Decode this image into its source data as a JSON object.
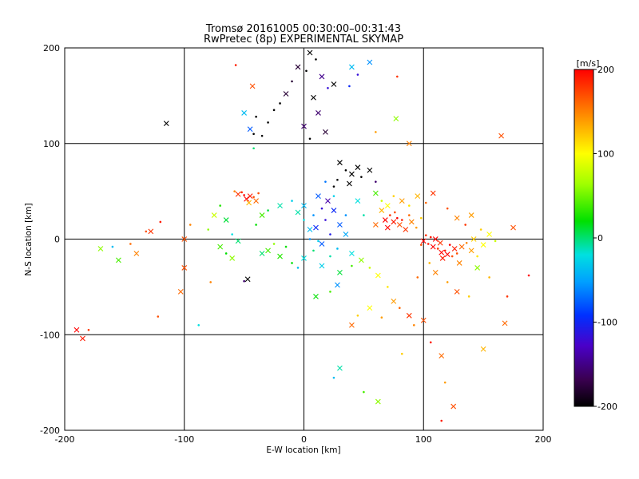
{
  "chart_data": {
    "type": "scatter",
    "title": "Tromsø 20161005 00:30:00–00:31:43",
    "subtitle": "RwPretec (8p) EXPERIMENTAL SKYMAP",
    "xlabel": "E-W location [km]",
    "ylabel": "N-S location [km]",
    "xlim": [
      -200,
      200
    ],
    "ylim": [
      -200,
      200
    ],
    "xticks": [
      "-200",
      "-100",
      "0",
      "100",
      "200"
    ],
    "yticks": [
      "-200",
      "-100",
      "0",
      "100",
      "200"
    ],
    "grid": true,
    "colorbar": {
      "label": "[m/s]",
      "range": [
        -200,
        200
      ],
      "ticks": [
        "200",
        "100",
        "0",
        "-100",
        "-200"
      ]
    },
    "marker_legend": "small dots and × crosses, colour = velocity (m/s)",
    "series": [
      {
        "values": [
          [
            5,
            195,
            -200
          ],
          [
            10,
            188,
            -200
          ],
          [
            -5,
            180,
            -180
          ],
          [
            2,
            176,
            -200
          ],
          [
            15,
            170,
            -150
          ],
          [
            -10,
            165,
            -180
          ],
          [
            25,
            162,
            -200
          ],
          [
            20,
            158,
            -120
          ],
          [
            -15,
            152,
            -180
          ],
          [
            -20,
            142,
            -200
          ],
          [
            8,
            148,
            -200
          ],
          [
            -25,
            135,
            -200
          ],
          [
            12,
            132,
            -160
          ],
          [
            -30,
            122,
            -200
          ],
          [
            0,
            118,
            -160
          ],
          [
            -35,
            108,
            -200
          ],
          [
            18,
            112,
            -180
          ],
          [
            -42,
            110,
            -200
          ],
          [
            -45,
            115,
            -80
          ],
          [
            5,
            105,
            -200
          ],
          [
            40,
            180,
            -40
          ],
          [
            45,
            172,
            -120
          ],
          [
            55,
            185,
            -60
          ],
          [
            38,
            160,
            -100
          ],
          [
            -115,
            121,
            -200
          ],
          [
            -57,
            182,
            190
          ],
          [
            -43,
            160,
            170
          ],
          [
            78,
            170,
            180
          ],
          [
            165,
            108,
            170
          ],
          [
            -40,
            128,
            -200
          ],
          [
            -50,
            132,
            -40
          ],
          [
            -42,
            95,
            0
          ],
          [
            77,
            126,
            60
          ],
          [
            60,
            112,
            140
          ],
          [
            88,
            100,
            150
          ]
        ]
      },
      {
        "values": [
          [
            30,
            80,
            -200
          ],
          [
            35,
            72,
            -200
          ],
          [
            40,
            68,
            -200
          ],
          [
            28,
            62,
            -200
          ],
          [
            45,
            75,
            -200
          ],
          [
            48,
            65,
            -200
          ],
          [
            55,
            72,
            -200
          ],
          [
            25,
            55,
            -200
          ],
          [
            38,
            58,
            -200
          ],
          [
            60,
            60,
            -160
          ],
          [
            20,
            40,
            -140
          ],
          [
            15,
            32,
            -120
          ],
          [
            25,
            30,
            -100
          ],
          [
            18,
            20,
            -120
          ],
          [
            10,
            12,
            -100
          ],
          [
            22,
            5,
            -110
          ],
          [
            30,
            15,
            -80
          ],
          [
            35,
            25,
            -60
          ],
          [
            12,
            45,
            -80
          ],
          [
            8,
            25,
            -60
          ],
          [
            15,
            -5,
            -80
          ],
          [
            28,
            -10,
            -40
          ],
          [
            40,
            -15,
            -20
          ],
          [
            5,
            0,
            -60
          ],
          [
            0,
            35,
            -40
          ],
          [
            25,
            45,
            -30
          ],
          [
            45,
            40,
            -20
          ],
          [
            50,
            25,
            -10
          ],
          [
            35,
            5,
            -50
          ],
          [
            18,
            60,
            -70
          ]
        ]
      },
      {
        "values": [
          [
            -55,
            47,
            180
          ],
          [
            -50,
            46,
            200
          ],
          [
            -45,
            45,
            190
          ],
          [
            -42,
            44,
            170
          ],
          [
            -48,
            42,
            200
          ],
          [
            -52,
            49,
            185
          ],
          [
            -40,
            40,
            160
          ],
          [
            -58,
            50,
            150
          ],
          [
            -46,
            38,
            130
          ],
          [
            -38,
            48,
            170
          ],
          [
            68,
            20,
            200
          ],
          [
            72,
            25,
            180
          ],
          [
            75,
            18,
            190
          ],
          [
            78,
            22,
            200
          ],
          [
            80,
            15,
            170
          ],
          [
            82,
            20,
            190
          ],
          [
            85,
            10,
            180
          ],
          [
            88,
            25,
            160
          ],
          [
            70,
            12,
            200
          ],
          [
            76,
            28,
            170
          ],
          [
            90,
            18,
            150
          ],
          [
            94,
            12,
            140
          ],
          [
            65,
            30,
            130
          ],
          [
            98,
            22,
            120
          ],
          [
            60,
            15,
            160
          ]
        ]
      },
      {
        "values": [
          [
            100,
            -2,
            200
          ],
          [
            104,
            -5,
            190
          ],
          [
            108,
            -8,
            200
          ],
          [
            112,
            -10,
            180
          ],
          [
            115,
            -14,
            200
          ],
          [
            118,
            -12,
            190
          ],
          [
            120,
            -16,
            200
          ],
          [
            124,
            -18,
            170
          ],
          [
            110,
            0,
            200
          ],
          [
            106,
            2,
            190
          ],
          [
            114,
            -4,
            180
          ],
          [
            122,
            -6,
            200
          ],
          [
            126,
            -10,
            190
          ],
          [
            128,
            -15,
            170
          ],
          [
            132,
            -8,
            160
          ],
          [
            102,
            4,
            180
          ],
          [
            116,
            -20,
            190
          ],
          [
            136,
            -4,
            150
          ],
          [
            140,
            -12,
            140
          ],
          [
            98,
            -6,
            170
          ],
          [
            142,
            0,
            120
          ],
          [
            105,
            -25,
            130
          ],
          [
            130,
            -25,
            150
          ],
          [
            145,
            -18,
            110
          ],
          [
            150,
            -6,
            100
          ],
          [
            95,
            -40,
            160
          ],
          [
            110,
            -35,
            150
          ],
          [
            120,
            -45,
            140
          ],
          [
            128,
            -55,
            170
          ],
          [
            138,
            -60,
            120
          ]
        ]
      },
      {
        "values": [
          [
            -170,
            -10,
            60
          ],
          [
            -160,
            -8,
            -40
          ],
          [
            -155,
            -22,
            40
          ],
          [
            -145,
            -5,
            160
          ],
          [
            -140,
            -15,
            150
          ],
          [
            -132,
            8,
            170
          ],
          [
            -128,
            8,
            180
          ],
          [
            -120,
            18,
            190
          ],
          [
            -100,
            0,
            170
          ],
          [
            -95,
            15,
            150
          ],
          [
            -190,
            -95,
            200
          ],
          [
            -180,
            -95,
            180
          ],
          [
            -185,
            -104,
            190
          ],
          [
            -122,
            -81,
            170
          ],
          [
            -103,
            -55,
            160
          ],
          [
            -78,
            -45,
            150
          ],
          [
            -60,
            -20,
            60
          ],
          [
            -50,
            -44,
            -160
          ],
          [
            -47,
            -42,
            -200
          ],
          [
            -10,
            -25,
            20
          ],
          [
            -30,
            -12,
            40
          ],
          [
            -25,
            -5,
            60
          ],
          [
            -20,
            -18,
            30
          ],
          [
            -15,
            -8,
            20
          ],
          [
            -35,
            -15,
            0
          ],
          [
            -5,
            -30,
            -40
          ],
          [
            0,
            -20,
            -20
          ],
          [
            8,
            -12,
            0
          ],
          [
            15,
            -28,
            -30
          ],
          [
            22,
            -18,
            -10
          ],
          [
            30,
            -35,
            10
          ],
          [
            40,
            -28,
            40
          ],
          [
            48,
            -22,
            60
          ],
          [
            55,
            -30,
            80
          ],
          [
            62,
            -38,
            100
          ],
          [
            70,
            -50,
            110
          ],
          [
            75,
            -65,
            140
          ],
          [
            80,
            -72,
            160
          ],
          [
            88,
            -80,
            180
          ],
          [
            92,
            -90,
            150
          ],
          [
            100,
            -85,
            170
          ],
          [
            106,
            -108,
            190
          ],
          [
            115,
            -122,
            160
          ],
          [
            118,
            -150,
            140
          ],
          [
            125,
            -175,
            170
          ],
          [
            115,
            -190,
            190
          ],
          [
            150,
            -115,
            130
          ],
          [
            170,
            -60,
            180
          ],
          [
            168,
            -88,
            160
          ],
          [
            188,
            -38,
            200
          ],
          [
            40,
            -90,
            160
          ],
          [
            45,
            -80,
            120
          ],
          [
            55,
            -72,
            100
          ],
          [
            65,
            -82,
            140
          ],
          [
            28,
            -48,
            -60
          ],
          [
            22,
            -55,
            40
          ],
          [
            10,
            -60,
            20
          ],
          [
            -65,
            -15,
            20
          ],
          [
            -70,
            -8,
            40
          ],
          [
            -80,
            10,
            60
          ],
          [
            -75,
            25,
            80
          ],
          [
            -70,
            35,
            30
          ],
          [
            -65,
            20,
            10
          ],
          [
            -60,
            5,
            -20
          ],
          [
            -55,
            -2,
            0
          ],
          [
            -40,
            15,
            20
          ],
          [
            -35,
            25,
            40
          ],
          [
            -30,
            30,
            10
          ],
          [
            -20,
            35,
            -10
          ],
          [
            -10,
            40,
            -30
          ],
          [
            -5,
            28,
            -10
          ],
          [
            0,
            20,
            -20
          ],
          [
            5,
            10,
            -40
          ],
          [
            12,
            -2,
            -30
          ],
          [
            60,
            48,
            40
          ],
          [
            65,
            40,
            80
          ],
          [
            70,
            35,
            100
          ],
          [
            75,
            45,
            120
          ],
          [
            82,
            40,
            140
          ],
          [
            88,
            35,
            110
          ],
          [
            95,
            45,
            130
          ],
          [
            102,
            38,
            160
          ],
          [
            108,
            48,
            180
          ],
          [
            120,
            32,
            170
          ],
          [
            128,
            22,
            150
          ],
          [
            135,
            15,
            180
          ],
          [
            140,
            25,
            140
          ],
          [
            148,
            10,
            120
          ],
          [
            155,
            5,
            100
          ],
          [
            160,
            -2,
            80
          ],
          [
            145,
            -30,
            60
          ],
          [
            155,
            -40,
            130
          ],
          [
            175,
            12,
            170
          ],
          [
            -88,
            -90,
            -20
          ],
          [
            -100,
            -30,
            170
          ],
          [
            25,
            -145,
            -40
          ],
          [
            30,
            -135,
            -10
          ],
          [
            50,
            -160,
            40
          ],
          [
            62,
            -170,
            60
          ],
          [
            82,
            -120,
            120
          ]
        ]
      }
    ]
  }
}
